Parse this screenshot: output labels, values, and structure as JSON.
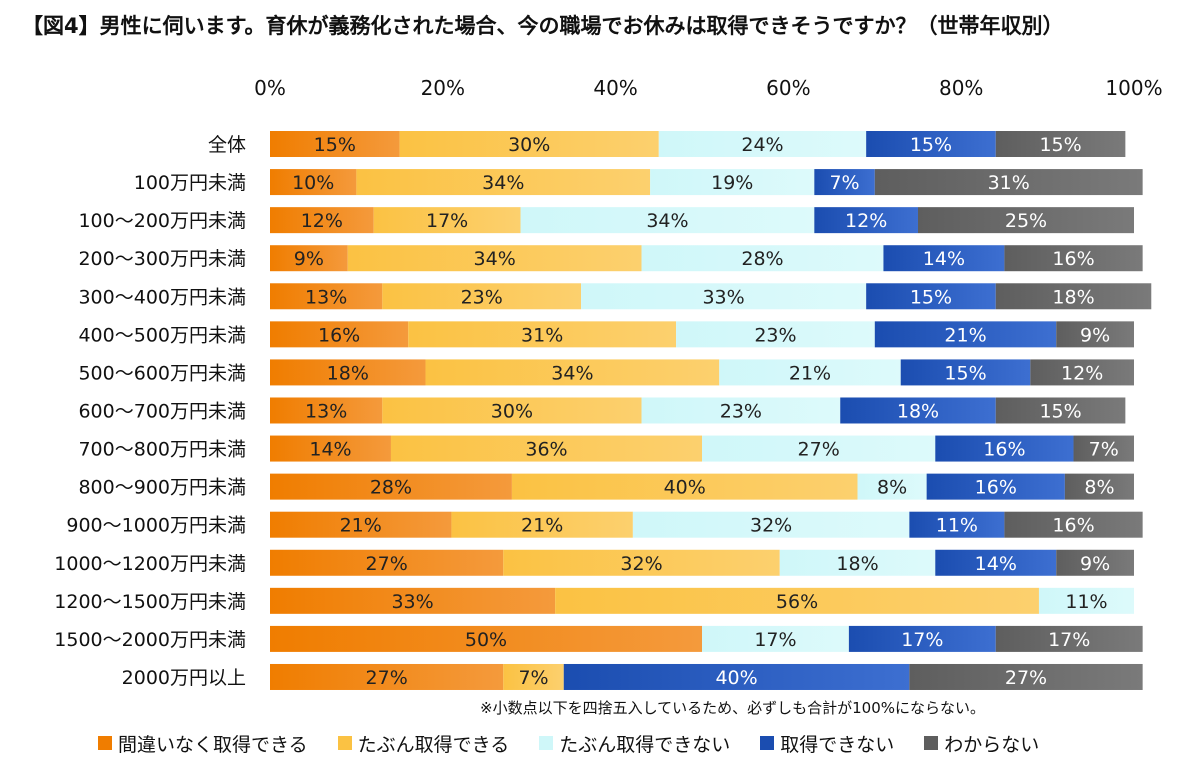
{
  "chart_data": {
    "type": "bar",
    "orientation": "horizontal",
    "stacked": true,
    "title": "【図4】男性に伺います。育休が義務化された場合、今の職場でお休みは取得できそうですか？（世帯年収別）",
    "xlim": [
      0,
      100
    ],
    "x_ticks": [
      "0%",
      "20%",
      "40%",
      "60%",
      "80%",
      "100%"
    ],
    "categories": [
      "全体",
      "100万円未満",
      "100～200万円未満",
      "200～300万円未満",
      "300～400万円未満",
      "400～500万円未満",
      "500～600万円未満",
      "600～700万円未満",
      "700～800万円未満",
      "800～900万円未満",
      "900～1000万円未満",
      "1000～1200万円未満",
      "1200～1500万円未満",
      "1500～2000万円未満",
      "2000万円以上"
    ],
    "series": [
      {
        "name": "間違いなく取得できる",
        "color": "#F07D00",
        "values": [
          15,
          10,
          12,
          9,
          13,
          16,
          18,
          13,
          14,
          28,
          21,
          27,
          33,
          50,
          27
        ]
      },
      {
        "name": "たぶん取得できる",
        "color": "#FBC243",
        "values": [
          30,
          34,
          17,
          34,
          23,
          31,
          34,
          30,
          36,
          40,
          21,
          32,
          56,
          0,
          7
        ]
      },
      {
        "name": "たぶん取得できない",
        "color": "#CFF7F9",
        "values": [
          24,
          19,
          34,
          28,
          33,
          23,
          21,
          23,
          27,
          8,
          32,
          18,
          11,
          17,
          0
        ]
      },
      {
        "name": "取得できない",
        "color": "#1B4DB0",
        "values": [
          15,
          7,
          12,
          14,
          15,
          21,
          15,
          18,
          16,
          16,
          11,
          14,
          0,
          17,
          40
        ]
      },
      {
        "name": "わからない",
        "color": "#5E5E5E",
        "values": [
          15,
          31,
          25,
          16,
          18,
          9,
          12,
          15,
          7,
          8,
          16,
          9,
          0,
          17,
          27
        ]
      }
    ],
    "label_suffix": "%",
    "legend_position": "bottom",
    "grid": false,
    "note": "※小数点以下を四捨五入しているため、必ずしも合計が100%にならない。"
  }
}
